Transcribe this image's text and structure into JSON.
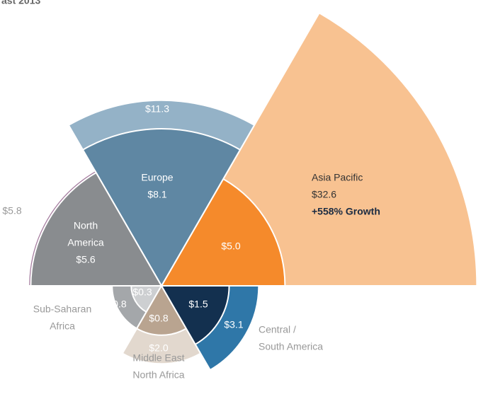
{
  "chart_data": {
    "type": "polar_area",
    "title": "ast 2013",
    "regions": [
      {
        "name": [
          "Asia Pacific"
        ],
        "values": [
          5.0,
          32.6
        ],
        "value_labels": [
          "$5.0",
          "$32.6"
        ],
        "colors": [
          "#f58a2b",
          "#f8c291"
        ],
        "annotation": "+558% Growth"
      },
      {
        "name": [
          "Europe"
        ],
        "values": [
          8.1,
          11.3
        ],
        "value_labels": [
          "$8.1",
          "$11.3"
        ],
        "colors": [
          "#5f87a3",
          "#94b2c7"
        ]
      },
      {
        "name": [
          "North",
          "America"
        ],
        "values": [
          5.6,
          5.8
        ],
        "value_labels": [
          "$5.6",
          "$5.8"
        ],
        "colors": [
          "#898c8f",
          "#a57d9f"
        ]
      },
      {
        "name": [
          "Sub-Saharan",
          "Africa"
        ],
        "values": [
          0.3,
          0.8
        ],
        "value_labels": [
          "$0.3",
          "$0.8"
        ],
        "colors": [
          "#cdcfd1",
          "#a4a7aa"
        ]
      },
      {
        "name": [
          "Middle East",
          "North Africa"
        ],
        "values": [
          0.8,
          2.0
        ],
        "value_labels": [
          "$0.8",
          "$2.0"
        ],
        "colors": [
          "#b9a490",
          "#e2d8ce"
        ]
      },
      {
        "name": [
          "Central /",
          "South America"
        ],
        "values": [
          1.5,
          3.1
        ],
        "value_labels": [
          "$1.5",
          "$3.1"
        ],
        "colors": [
          "#13304f",
          "#2f77a8"
        ]
      }
    ]
  }
}
